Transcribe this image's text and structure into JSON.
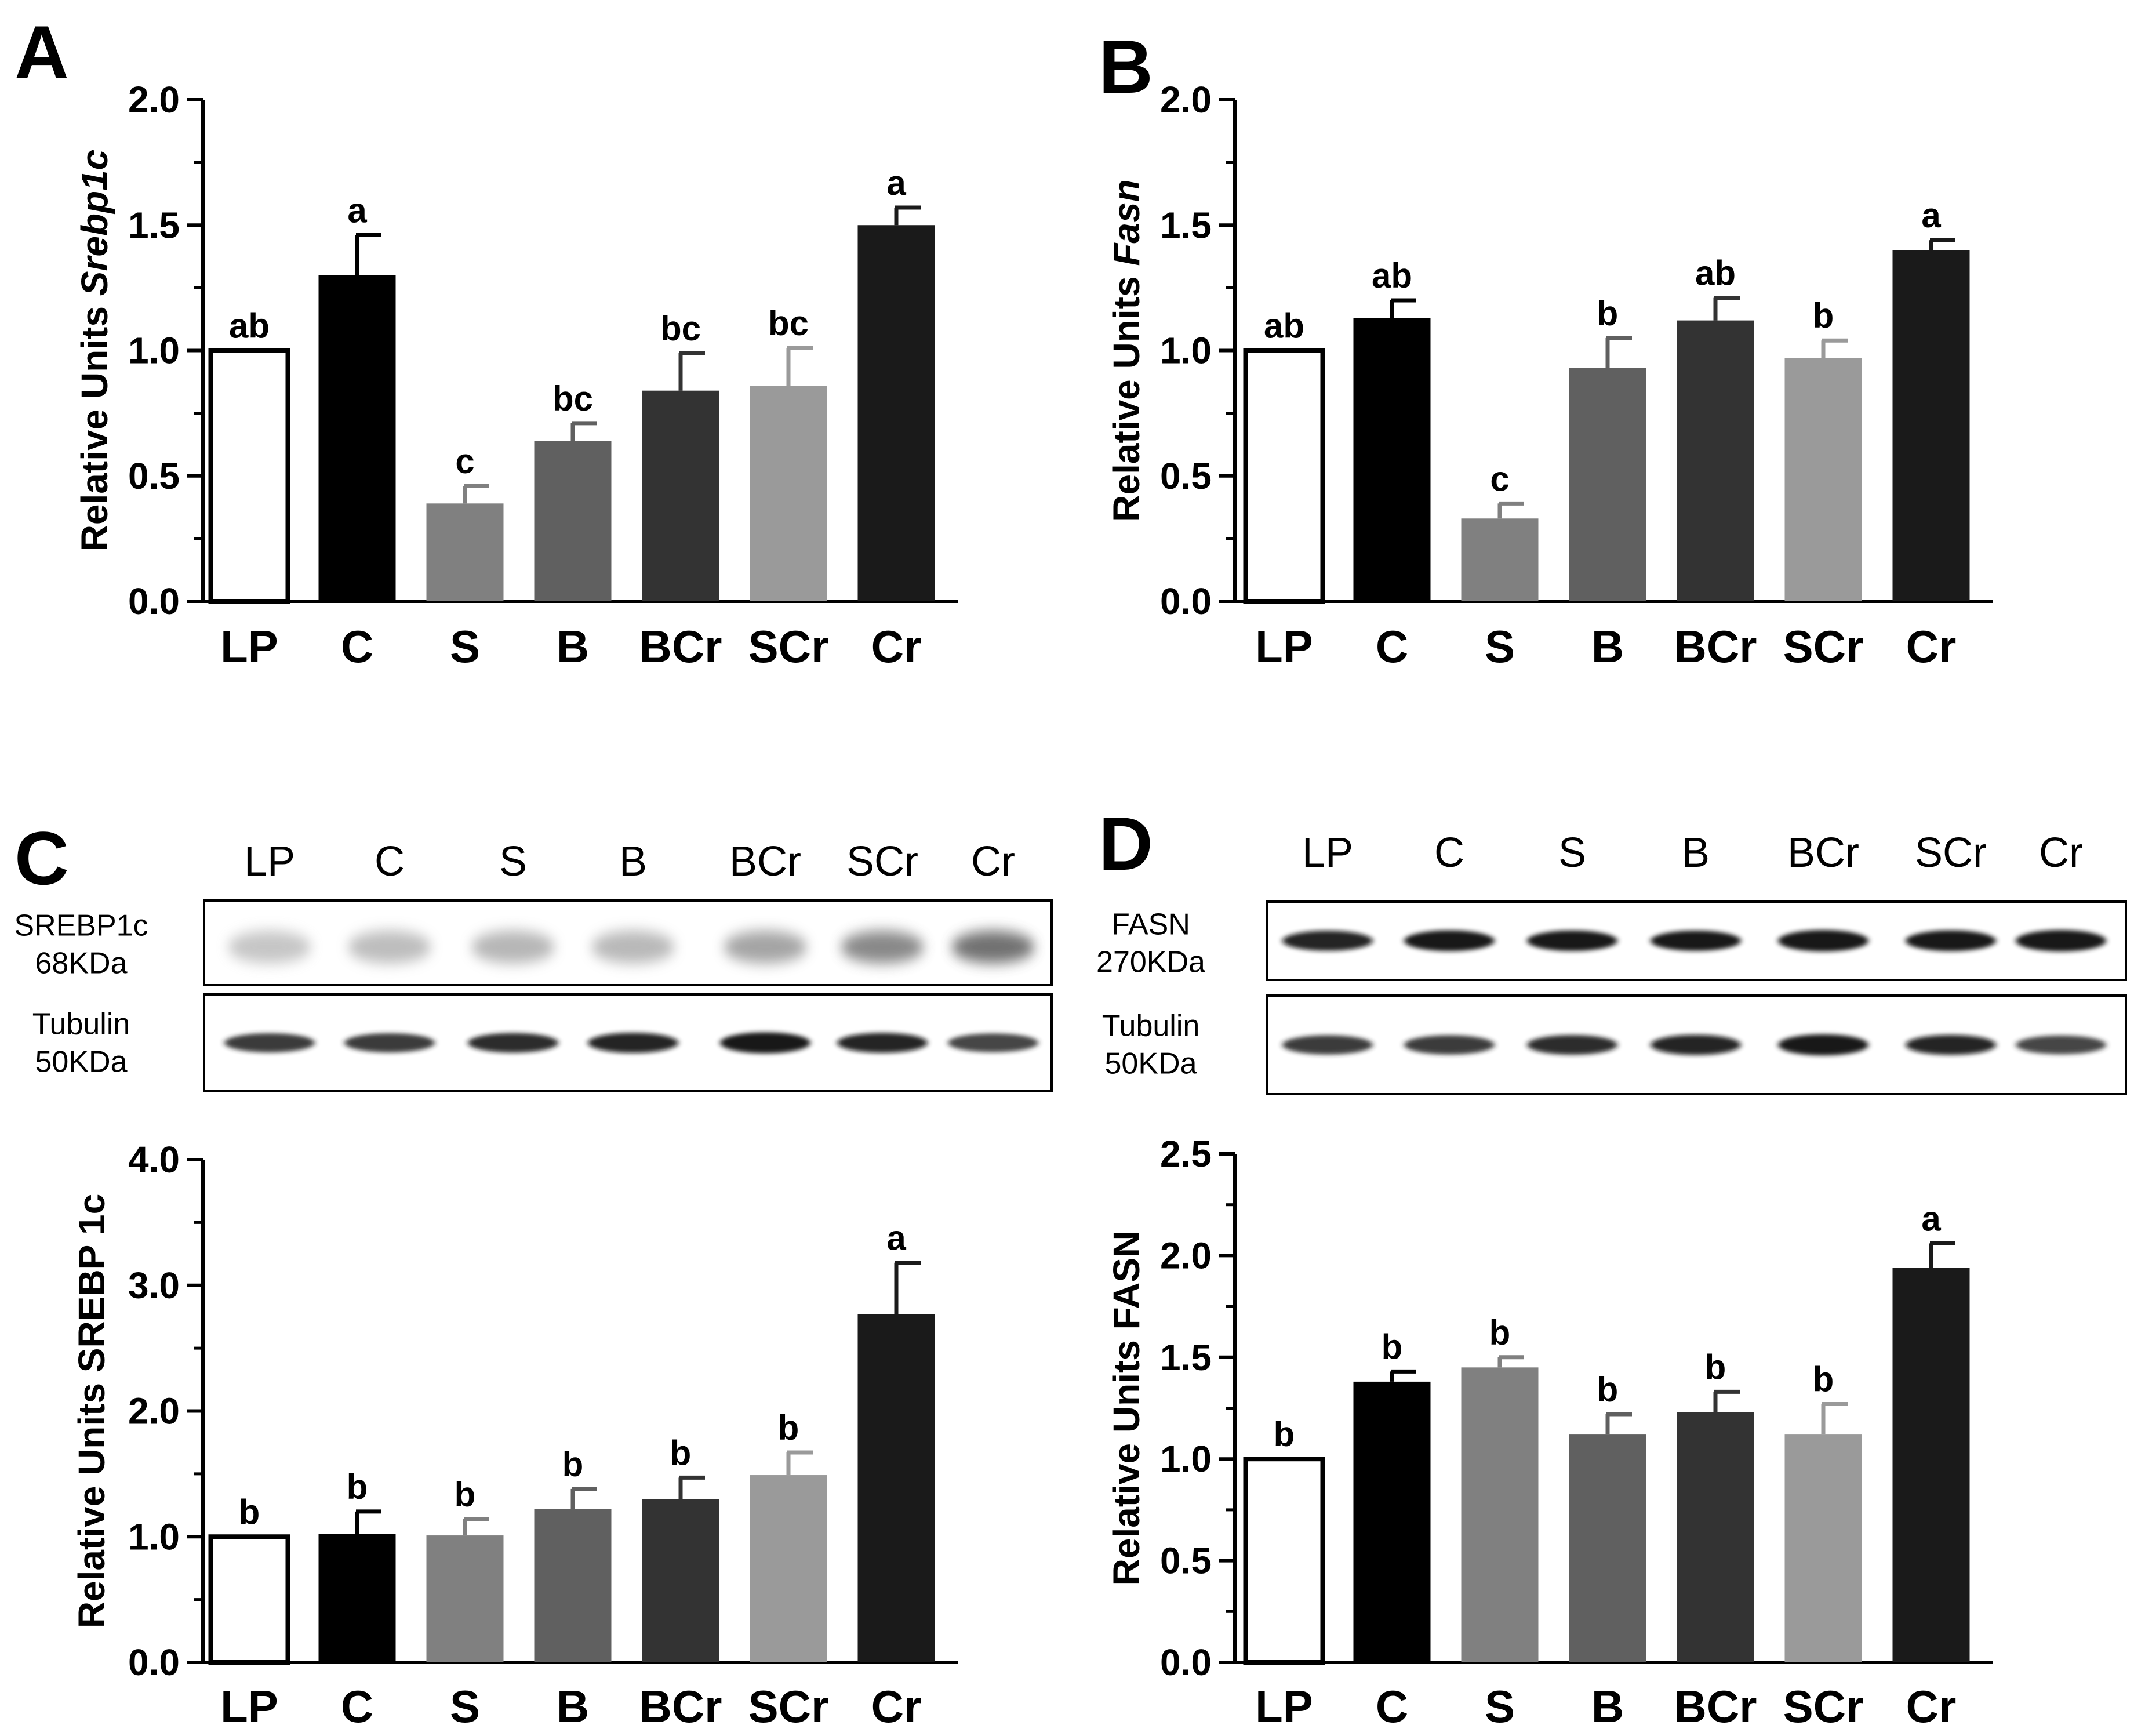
{
  "panels": [
    {
      "id": "A",
      "label": "A",
      "chart_data": {
        "type": "bar",
        "categories": [
          "LP",
          "C",
          "S",
          "B",
          "BCr",
          "SCr",
          "Cr"
        ],
        "values": [
          1.0,
          1.3,
          0.39,
          0.64,
          0.84,
          0.86,
          1.5
        ],
        "errors": [
          0.0,
          0.16,
          0.07,
          0.07,
          0.15,
          0.15,
          0.07
        ],
        "significance": [
          "ab",
          "a",
          "c",
          "bc",
          "bc",
          "bc",
          "a"
        ],
        "ylabel_prefix": "Relative Units ",
        "ylabel_gene": "Srebp1c",
        "ylim": [
          0,
          2.0
        ],
        "yticks": [
          "0.0",
          "0.5",
          "1.0",
          "1.5",
          "2.0"
        ],
        "colors": [
          "#ffffff",
          "#000000",
          "#808080",
          "#606060",
          "#333333",
          "#9a9a9a",
          "#1a1a1a"
        ]
      }
    },
    {
      "id": "B",
      "label": "B",
      "chart_data": {
        "type": "bar",
        "categories": [
          "LP",
          "C",
          "S",
          "B",
          "BCr",
          "SCr",
          "Cr"
        ],
        "values": [
          1.0,
          1.13,
          0.33,
          0.93,
          1.12,
          0.97,
          1.4
        ],
        "errors": [
          0.0,
          0.07,
          0.06,
          0.12,
          0.09,
          0.07,
          0.04
        ],
        "significance": [
          "ab",
          "ab",
          "c",
          "b",
          "ab",
          "b",
          "a"
        ],
        "ylabel_prefix": "Relative Units ",
        "ylabel_gene": "Fasn",
        "ylim": [
          0,
          2.0
        ],
        "yticks": [
          "0.0",
          "0.5",
          "1.0",
          "1.5",
          "2.0"
        ],
        "colors": [
          "#ffffff",
          "#000000",
          "#808080",
          "#606060",
          "#333333",
          "#9a9a9a",
          "#1a1a1a"
        ]
      }
    },
    {
      "id": "C",
      "label": "C",
      "chart_data": {
        "type": "bar",
        "categories": [
          "LP",
          "C",
          "S",
          "B",
          "BCr",
          "SCr",
          "Cr"
        ],
        "values": [
          1.0,
          1.02,
          1.01,
          1.22,
          1.3,
          1.49,
          2.77
        ],
        "errors": [
          0.0,
          0.18,
          0.13,
          0.16,
          0.17,
          0.18,
          0.41
        ],
        "significance": [
          "b",
          "b",
          "b",
          "b",
          "b",
          "b",
          "a"
        ],
        "ylabel_prefix": "Relative Units SREBP 1c",
        "ylabel_gene": "",
        "ylim": [
          0,
          4.0
        ],
        "yticks": [
          "0.0",
          "1.0",
          "2.0",
          "3.0",
          "4.0"
        ],
        "colors": [
          "#ffffff",
          "#000000",
          "#808080",
          "#606060",
          "#333333",
          "#9a9a9a",
          "#1a1a1a"
        ]
      }
    },
    {
      "id": "D",
      "label": "D",
      "chart_data": {
        "type": "bar",
        "categories": [
          "LP",
          "C",
          "S",
          "B",
          "BCr",
          "SCr",
          "Cr"
        ],
        "values": [
          1.0,
          1.38,
          1.45,
          1.12,
          1.23,
          1.12,
          1.94
        ],
        "errors": [
          0.0,
          0.05,
          0.05,
          0.1,
          0.1,
          0.15,
          0.12
        ],
        "significance": [
          "b",
          "b",
          "b",
          "b",
          "b",
          "b",
          "a"
        ],
        "ylabel_prefix": "Relative Units FASN",
        "ylabel_gene": "",
        "ylim": [
          0,
          2.5
        ],
        "yticks": [
          "0.0",
          "0.5",
          "1.0",
          "1.5",
          "2.0",
          "2.5"
        ],
        "colors": [
          "#ffffff",
          "#000000",
          "#808080",
          "#606060",
          "#333333",
          "#9a9a9a",
          "#1a1a1a"
        ]
      }
    }
  ],
  "blots": [
    {
      "id": "C",
      "lanes": [
        "LP",
        "C",
        "S",
        "B",
        "BCr",
        "SCr",
        "Cr"
      ],
      "rows": [
        {
          "name": "SREBP1c",
          "size": "68KDa",
          "band_intensity": [
            0.18,
            0.22,
            0.25,
            0.24,
            0.32,
            0.42,
            0.5
          ],
          "diffuse": true
        },
        {
          "name": "Tubulin",
          "size": "50KDa",
          "band_intensity": [
            0.7,
            0.7,
            0.75,
            0.8,
            0.9,
            0.78,
            0.65
          ],
          "diffuse": false
        }
      ]
    },
    {
      "id": "D",
      "lanes": [
        "LP",
        "C",
        "S",
        "B",
        "BCr",
        "SCr",
        "Cr"
      ],
      "rows": [
        {
          "name": "FASN",
          "size": "270KDa",
          "band_intensity": [
            0.8,
            0.88,
            0.85,
            0.82,
            0.95,
            0.88,
            0.95
          ],
          "diffuse": false
        },
        {
          "name": "Tubulin",
          "size": "50KDa",
          "band_intensity": [
            0.7,
            0.7,
            0.75,
            0.8,
            0.9,
            0.78,
            0.65
          ],
          "diffuse": false
        }
      ]
    }
  ]
}
